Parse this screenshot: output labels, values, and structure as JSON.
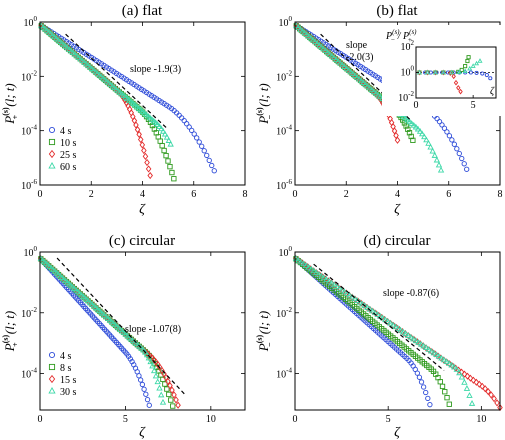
{
  "chart_data": [
    {
      "id": "a",
      "type": "scatter",
      "title": "(a) flat",
      "xlabel": "ζ",
      "ylabel": {
        "main": "P",
        "sub": "+",
        "sup": "(s)",
        "args": "(l; t)"
      },
      "xlim": [
        0,
        8
      ],
      "ylim_log10": [
        -6,
        0
      ],
      "xticks": [
        "0",
        "2",
        "4",
        "6",
        "8"
      ],
      "yticks": [
        "10^0",
        "10^-2",
        "10^-4",
        "10^-6"
      ],
      "annotation": "slope -1.9(3)",
      "slope": {
        "x": [
          1.0,
          5.0
        ],
        "log10y": [
          -0.45,
          -3.95
        ]
      },
      "legend": {
        "position": "bottom-left",
        "labels": [
          "4 s",
          "10 s",
          "25 s",
          "60 s"
        ]
      },
      "series": [
        {
          "name": "4 s",
          "color": "#2d4bd8",
          "marker": "circle",
          "x0": 0.05,
          "x1": 6.8,
          "logy0": -0.1,
          "slope": -0.6,
          "tail": {
            "start": 5.0,
            "curv": 0.4
          }
        },
        {
          "name": "10 s",
          "color": "#2f9a1e",
          "marker": "square",
          "x0": 0.05,
          "x1": 5.3,
          "logy0": -0.1,
          "slope": -0.8,
          "tail": {
            "start": 3.9,
            "curv": 0.85
          }
        },
        {
          "name": "25 s",
          "color": "#e32b2b",
          "marker": "diamond",
          "x0": 0.05,
          "x1": 4.3,
          "logy0": -0.1,
          "slope": -0.8,
          "tail": {
            "start": 3.0,
            "curv": 1.25
          }
        },
        {
          "name": "60 s",
          "color": "#3dd8a8",
          "marker": "triangle",
          "x0": 0.05,
          "x1": 5.1,
          "logy0": -0.1,
          "slope": -0.8,
          "tail": {
            "start": 4.5,
            "curv": 0.9
          }
        }
      ]
    },
    {
      "id": "b",
      "type": "scatter",
      "title": "(b) flat",
      "xlabel": "ζ",
      "ylabel": {
        "main": "P",
        "sub": "−",
        "sup": "(s)",
        "args": "(l; t)"
      },
      "xlim": [
        0,
        8
      ],
      "ylim_log10": [
        -6,
        0
      ],
      "xticks": [
        "0",
        "2",
        "4",
        "6",
        "8"
      ],
      "yticks": [
        "10^0",
        "10^-2",
        "10^-4",
        "10^-6"
      ],
      "annotation_lines": [
        "slope",
        "-2.0(3)"
      ],
      "slope": {
        "x": [
          1.0,
          4.5
        ],
        "log10y": [
          -0.45,
          -3.6
        ]
      },
      "series": [
        {
          "name": "4 s",
          "color": "#2d4bd8",
          "marker": "circle",
          "x0": 0.05,
          "x1": 6.7,
          "logy0": -0.1,
          "slope": -0.6,
          "tail": {
            "start": 5.0,
            "curv": 0.45
          }
        },
        {
          "name": "10 s",
          "color": "#2f9a1e",
          "marker": "square",
          "x0": 0.05,
          "x1": 4.6,
          "logy0": -0.1,
          "slope": -0.8,
          "tail": {
            "start": 3.8,
            "curv": 0.9
          }
        },
        {
          "name": "25 s",
          "color": "#e32b2b",
          "marker": "diamond",
          "x0": 0.05,
          "x1": 4.0,
          "logy0": -0.1,
          "slope": -0.8,
          "tail": {
            "start": 3.1,
            "curv": 1.3
          }
        },
        {
          "name": "60 s",
          "color": "#3dd8a8",
          "marker": "triangle",
          "x0": 0.05,
          "x1": 5.7,
          "logy0": -0.1,
          "slope": -0.8,
          "tail": {
            "start": 4.7,
            "curv": 0.8
          }
        }
      ],
      "inset": {
        "ylabel": "P−(s) / P+(s)",
        "ylabel_parts": {
          "a": "P",
          "asub": "−",
          "asup": "(s)",
          "sep": " / ",
          "b": "P",
          "bsub": "+",
          "bsup": "(s)"
        },
        "xlabel": "ζ",
        "xlim": [
          0,
          7
        ],
        "ylim_log10": [
          -2,
          2
        ],
        "xticks": [
          "0",
          "5"
        ],
        "yticks": [
          "10^2",
          "10^0",
          "10^-2"
        ],
        "reference_log10y": 0,
        "series": [
          {
            "name": "4 s",
            "color": "#2d4bd8",
            "marker": "circle",
            "points": [
              [
                0.3,
                0
              ],
              [
                0.8,
                0
              ],
              [
                1.3,
                0
              ],
              [
                1.8,
                0
              ],
              [
                2.3,
                0
              ],
              [
                2.8,
                0
              ],
              [
                3.3,
                0
              ],
              [
                3.8,
                0
              ],
              [
                4.3,
                0
              ],
              [
                4.8,
                0
              ],
              [
                5.3,
                -0.03
              ],
              [
                5.8,
                -0.08
              ],
              [
                6.2,
                -0.2
              ],
              [
                6.5,
                -0.45
              ]
            ]
          },
          {
            "name": "10 s",
            "color": "#2f9a1e",
            "marker": "square",
            "points": [
              [
                0.3,
                0
              ],
              [
                1.0,
                0
              ],
              [
                1.7,
                0
              ],
              [
                2.4,
                0
              ],
              [
                3.1,
                0
              ],
              [
                3.7,
                0.05
              ],
              [
                4.0,
                0.2
              ],
              [
                4.3,
                0.5
              ],
              [
                4.5,
                0.9
              ],
              [
                4.6,
                1.2
              ]
            ]
          },
          {
            "name": "25 s",
            "color": "#e32b2b",
            "marker": "diamond",
            "points": [
              [
                0.3,
                0
              ],
              [
                1.0,
                0
              ],
              [
                1.7,
                0
              ],
              [
                2.4,
                0
              ],
              [
                3.0,
                -0.05
              ],
              [
                3.3,
                -0.3
              ],
              [
                3.5,
                -0.8
              ],
              [
                3.7,
                -1.2
              ],
              [
                3.9,
                -1.5
              ]
            ]
          },
          {
            "name": "60 s",
            "color": "#3dd8a8",
            "marker": "triangle",
            "points": [
              [
                0.3,
                0
              ],
              [
                1.0,
                0
              ],
              [
                1.7,
                0
              ],
              [
                2.4,
                0
              ],
              [
                3.1,
                0
              ],
              [
                3.8,
                0.02
              ],
              [
                4.3,
                0.1
              ],
              [
                4.7,
                0.3
              ],
              [
                5.0,
                0.5
              ],
              [
                5.3,
                0.7
              ],
              [
                5.6,
                0.9
              ]
            ]
          }
        ]
      }
    },
    {
      "id": "c",
      "type": "scatter",
      "title": "(c) circular",
      "xlabel": "ζ",
      "ylabel": {
        "main": "P",
        "sub": "+",
        "sup": "(s)",
        "args": "(l; t)"
      },
      "xlim": [
        0,
        12
      ],
      "ylim_log10": [
        -5.2,
        0
      ],
      "xticks": [
        "0",
        "5",
        "10"
      ],
      "yticks": [
        "10^0",
        "10^-2",
        "10^-4"
      ],
      "annotation": "slope -1.07(8)",
      "slope": {
        "x": [
          1.0,
          8.5
        ],
        "log10y": [
          -0.2,
          -4.7
        ]
      },
      "legend": {
        "position": "bottom-left",
        "labels": [
          "4 s",
          "8 s",
          "15 s",
          "30 s"
        ]
      },
      "series": [
        {
          "name": "4 s",
          "color": "#2d4bd8",
          "marker": "circle",
          "x0": 0.05,
          "x1": 7.0,
          "logy0": -0.2,
          "slope": -0.62,
          "tail": {
            "start": 5.0,
            "curv": 0.45
          }
        },
        {
          "name": "8 s",
          "color": "#2f9a1e",
          "marker": "square",
          "x0": 0.05,
          "x1": 8.0,
          "logy0": -0.2,
          "slope": -0.5,
          "tail": {
            "start": 6.2,
            "curv": 0.4
          }
        },
        {
          "name": "15 s",
          "color": "#e32b2b",
          "marker": "diamond",
          "x0": 0.05,
          "x1": 8.2,
          "logy0": -0.2,
          "slope": -0.5,
          "tail": {
            "start": 6.5,
            "curv": 0.32
          }
        },
        {
          "name": "30 s",
          "color": "#3dd8a8",
          "marker": "triangle",
          "x0": 0.05,
          "x1": 7.2,
          "logy0": -0.2,
          "slope": -0.5,
          "tail": {
            "start": 6.0,
            "curv": 0.8
          }
        }
      ]
    },
    {
      "id": "d",
      "type": "scatter",
      "title": "(d) circular",
      "xlabel": "ζ",
      "ylabel": {
        "main": "P",
        "sub": "−",
        "sup": "(s)",
        "args": "(l; t)"
      },
      "xlim": [
        0,
        11
      ],
      "ylim_log10": [
        -5.2,
        0
      ],
      "xticks": [
        "0",
        "5",
        "10"
      ],
      "yticks": [
        "10^0",
        "10^-2",
        "10^-4"
      ],
      "annotation": "slope -0.87(6)",
      "slope": {
        "x": [
          1.0,
          8.0
        ],
        "log10y": [
          -0.4,
          -3.9
        ]
      },
      "series": [
        {
          "name": "4 s",
          "color": "#2d4bd8",
          "marker": "circle",
          "x0": 0.05,
          "x1": 7.8,
          "logy0": -0.2,
          "slope": -0.55,
          "tail": {
            "start": 6.0,
            "curv": 0.55
          }
        },
        {
          "name": "8 s",
          "color": "#2f9a1e",
          "marker": "square",
          "x0": 0.05,
          "x1": 8.4,
          "logy0": -0.2,
          "slope": -0.5,
          "tail": {
            "start": 7.3,
            "curv": 0.7
          }
        },
        {
          "name": "15 s",
          "color": "#e32b2b",
          "marker": "diamond",
          "x0": 0.05,
          "x1": 11.0,
          "logy0": -0.2,
          "slope": -0.42,
          "tail": {
            "start": 10.0,
            "curv": 0.3
          }
        },
        {
          "name": "30 s",
          "color": "#3dd8a8",
          "marker": "triangle",
          "x0": 0.05,
          "x1": 9.5,
          "logy0": -0.2,
          "slope": -0.42,
          "tail": {
            "start": 8.5,
            "curv": 0.8
          }
        }
      ]
    }
  ]
}
